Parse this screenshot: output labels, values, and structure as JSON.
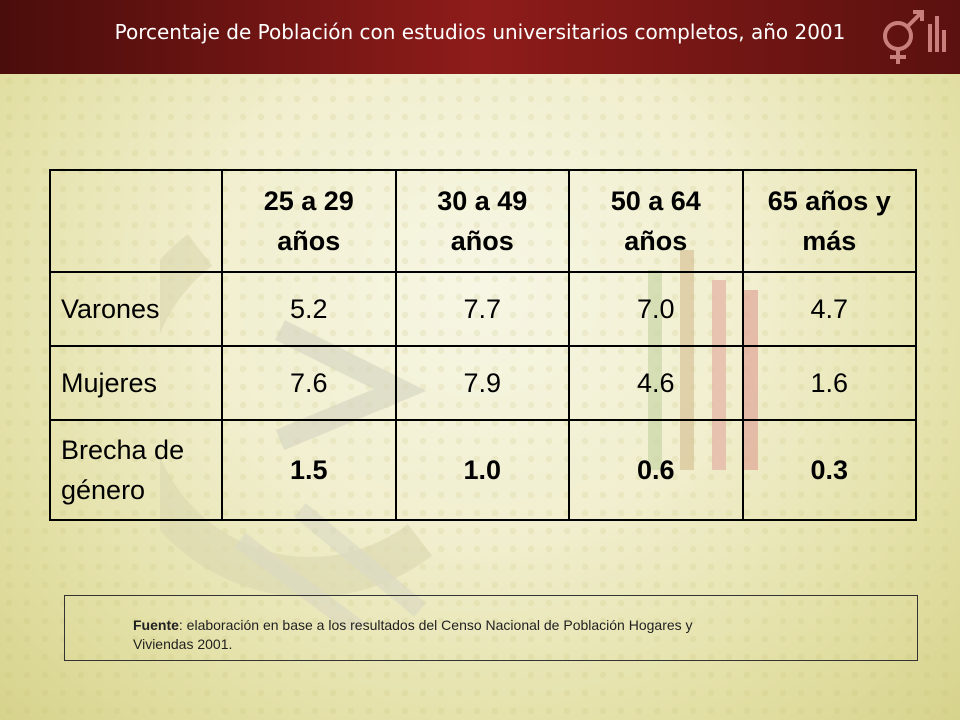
{
  "header": {
    "title": "Porcentaje de Población con estudios universitarios completos, año 2001"
  },
  "table": {
    "headers": [
      "25 a 29 años",
      "30 a 49 años",
      "50 a 64 años",
      "65 años y más"
    ],
    "rows": [
      {
        "label": "Varones",
        "values": [
          "5.2",
          "7.7",
          "7.0",
          "4.7"
        ]
      },
      {
        "label": "Mujeres",
        "values": [
          "7.6",
          "7.9",
          "4.6",
          "1.6"
        ]
      },
      {
        "label": "Brecha de género",
        "values": [
          "1.5",
          "1.0",
          "0.6",
          "0.3"
        ]
      }
    ]
  },
  "source": {
    "label": "Fuente",
    "text": ": elaboración en base a los resultados del Censo Nacional de Población Hogares y Viviendas 2001."
  },
  "colors": {
    "header_dark": "#4a0d0b",
    "header_mid": "#8e1c1a",
    "background": "#f1efcf"
  }
}
